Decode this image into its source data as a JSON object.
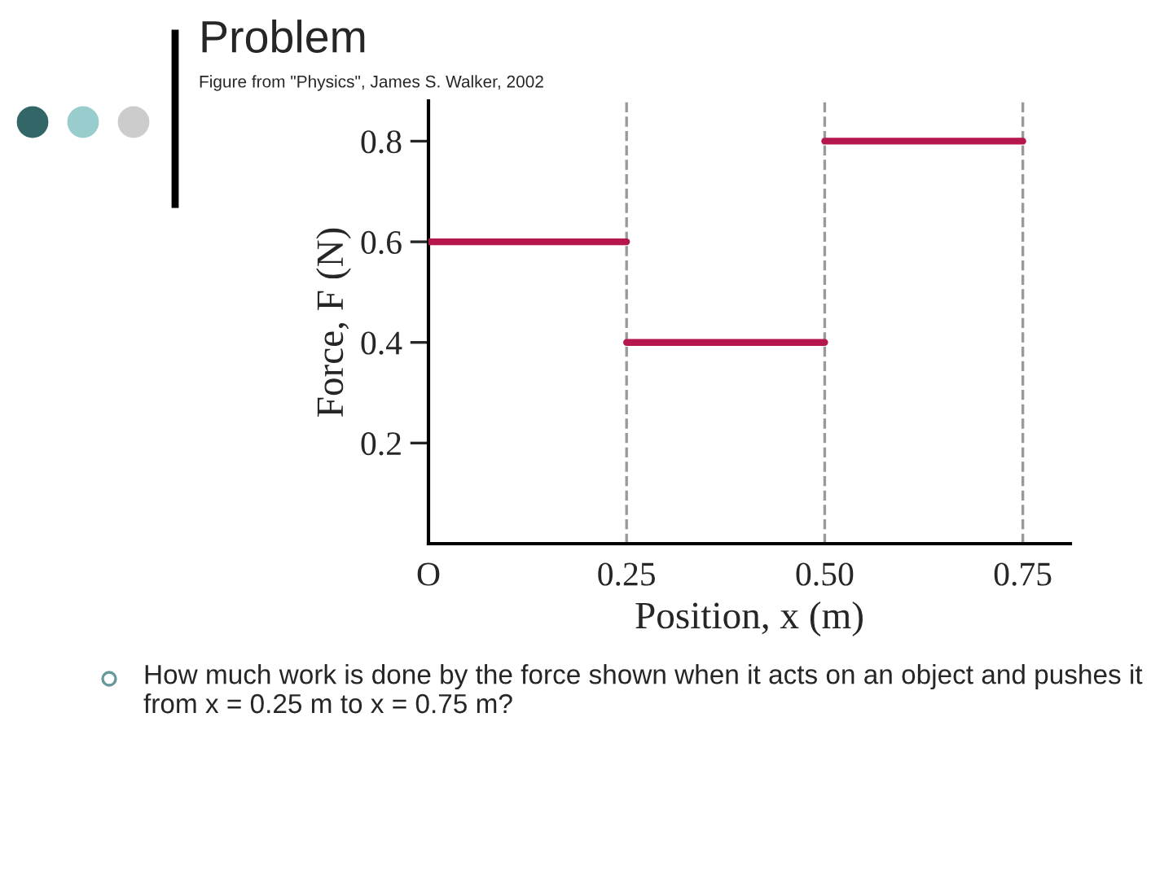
{
  "chart_data": {
    "type": "line",
    "title": "Problem",
    "subtitle": "Figure from \"Physics\", James S. Walker, 2002",
    "xlabel": "Position, x (m)",
    "ylabel": "Force, F (N)",
    "series": [
      {
        "x": [
          0,
          0.25
        ],
        "values": [
          0.6,
          0.6
        ],
        "color": "#b5164e"
      },
      {
        "x": [
          0.25,
          0.5
        ],
        "values": [
          0.4,
          0.4
        ],
        "color": "#b5164e"
      },
      {
        "x": [
          0.5,
          0.75
        ],
        "values": [
          0.8,
          0.8
        ],
        "color": "#b5164e"
      }
    ],
    "ref_lines": [
      {
        "axis": "x",
        "value": 0.25,
        "color": "#999999",
        "line_style": "dashed"
      },
      {
        "axis": "x",
        "value": 0.5,
        "color": "#999999",
        "line_style": "dashed"
      },
      {
        "axis": "x",
        "value": 0.75,
        "color": "#999999",
        "line_style": "dashed"
      }
    ],
    "xlim": [
      0,
      0.81
    ],
    "ylim": [
      0,
      0.88
    ],
    "xticks": [
      {
        "value": 0,
        "label": "O"
      },
      0.25,
      {
        "value": 0.5,
        "label": "0.50"
      },
      0.75
    ],
    "yticks": [
      0.2,
      0.4,
      0.6,
      0.8
    ],
    "grid": false,
    "legend": false,
    "marker": "none",
    "line_style": "solid",
    "annotations": [
      "How much work is done by the force shown when it acts on an object and pushes it from x = 0.25 m to x = 0.75 m?"
    ]
  }
}
